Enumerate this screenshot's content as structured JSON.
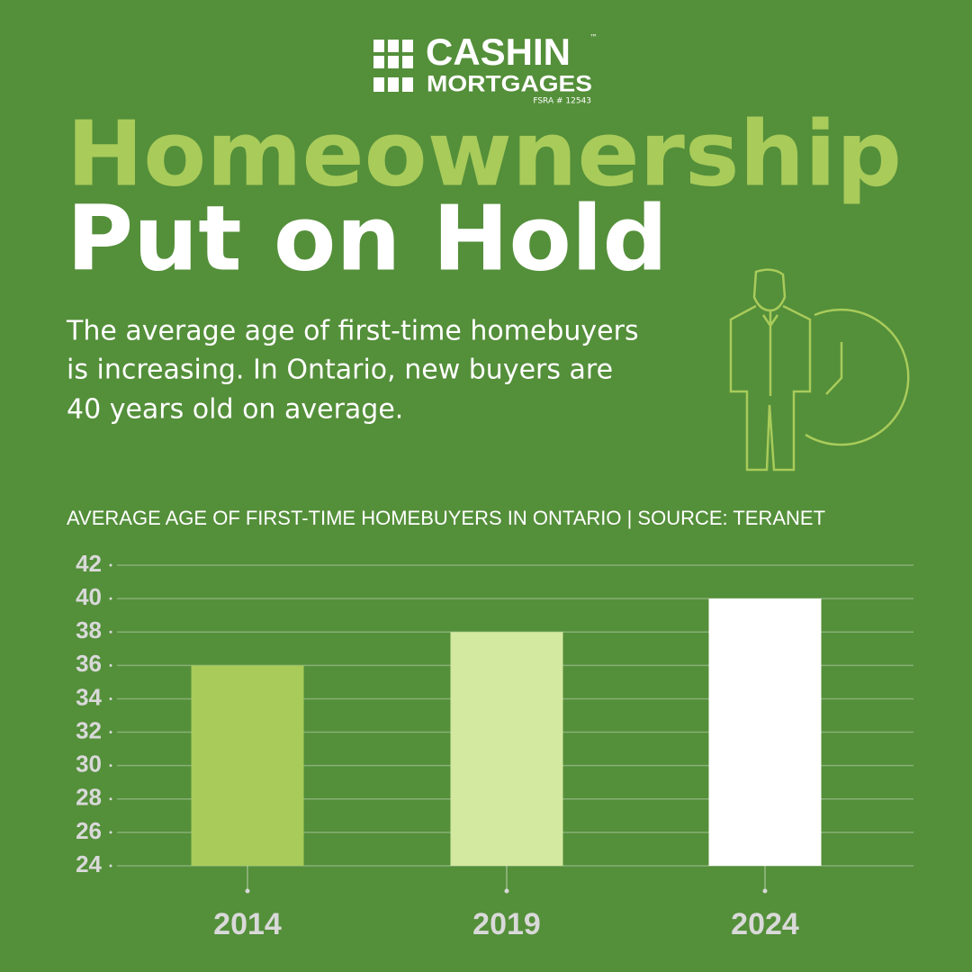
{
  "brand": {
    "name": "CASHIN",
    "trademark": "™",
    "sub": "MORTGAGES",
    "license": "FSRA # 12543"
  },
  "headline": {
    "line1": "Homeownership",
    "line2": "Put on Hold"
  },
  "body": [
    "The average age of first-time homebuyers",
    "is increasing. In Ontario, new buyers are",
    "40 years old on average."
  ],
  "chart_data": {
    "type": "bar",
    "title": "AVERAGE AGE OF FIRST-TIME HOMEBUYERS IN ONTARIO | SOURCE: TERANET",
    "categories": [
      "2014",
      "2019",
      "2024"
    ],
    "values": [
      36,
      38,
      40
    ],
    "colors": [
      "#a8cb5a",
      "#d4e9a0",
      "#ffffff"
    ],
    "ylim": [
      24,
      42
    ],
    "yticks": [
      24,
      26,
      28,
      30,
      32,
      34,
      36,
      38,
      40,
      42
    ],
    "grid": true
  }
}
